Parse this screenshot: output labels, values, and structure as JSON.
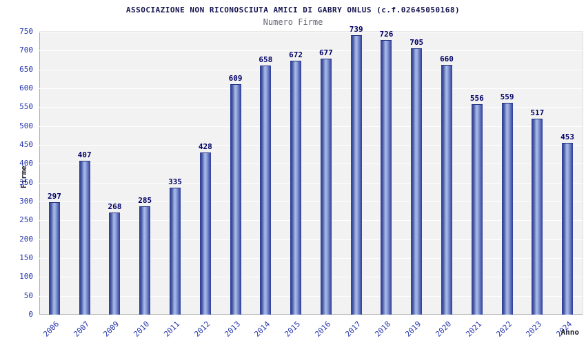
{
  "chart_data": {
    "type": "bar",
    "title": "ASSOCIAZIONE NON RICONOSCIUTA AMICI DI GABRY ONLUS (c.f.02645050168)",
    "subtitle": "Numero Firme",
    "xlabel": "Anno",
    "ylabel": "Firme",
    "categories": [
      "2006",
      "2007",
      "2009",
      "2010",
      "2011",
      "2012",
      "2013",
      "2014",
      "2015",
      "2016",
      "2017",
      "2018",
      "2019",
      "2020",
      "2021",
      "2022",
      "2023",
      "2024"
    ],
    "values": [
      297,
      407,
      268,
      285,
      335,
      428,
      609,
      658,
      672,
      677,
      739,
      726,
      705,
      660,
      556,
      559,
      517,
      453
    ],
    "ylim": [
      0,
      750
    ],
    "ytick_step": 50,
    "grid": "horizontal",
    "legend": "none",
    "colors": {
      "bar_dark": "#2c3b99",
      "bar_light": "#a9bae9",
      "value_label": "#000066",
      "tick_label": "#2233aa",
      "title": "#12124e",
      "subtitle": "#666677",
      "plot_background": "#f2f2f2",
      "gridline": "#ffffff"
    }
  }
}
